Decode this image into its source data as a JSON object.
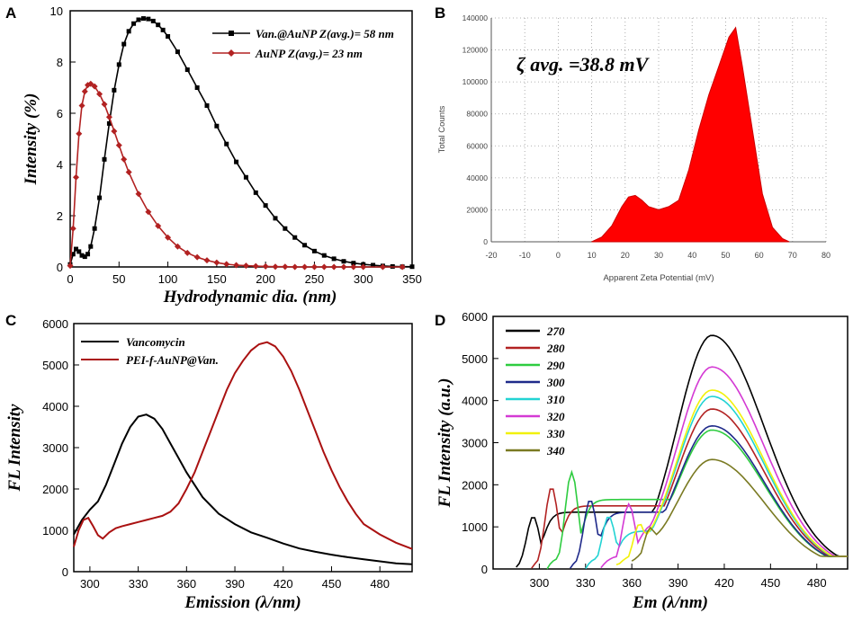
{
  "panel_labels": [
    "A",
    "B",
    "C",
    "D"
  ],
  "chart_data": [
    {
      "type": "line",
      "panel": "A",
      "xlabel": "Hydrodynamic dia. (nm)",
      "ylabel": "Intensity (%)",
      "xlim": [
        0,
        350
      ],
      "ylim": [
        0,
        10
      ],
      "xticks": [
        "0",
        "50",
        "100",
        "150",
        "200",
        "250",
        "300",
        "350"
      ],
      "yticks": [
        "0",
        "2",
        "4",
        "6",
        "8",
        "10"
      ],
      "legend": [
        "Van.@AuNP Z(avg.)= 58 nm",
        "AuNP Z(avg.)= 23 nm"
      ],
      "legend_position": "top-right",
      "series": [
        {
          "name": "Van.@AuNP Z(avg.)= 58 nm",
          "color": "#000000",
          "marker": "square",
          "x": [
            0,
            3,
            6,
            9,
            12,
            15,
            18,
            21,
            25,
            30,
            35,
            40,
            45,
            50,
            55,
            60,
            65,
            70,
            75,
            80,
            85,
            90,
            95,
            100,
            110,
            120,
            130,
            140,
            150,
            160,
            170,
            180,
            190,
            200,
            210,
            220,
            230,
            240,
            250,
            260,
            270,
            280,
            290,
            300,
            310,
            320,
            330,
            340,
            350
          ],
          "y": [
            0.1,
            0.5,
            0.7,
            0.6,
            0.45,
            0.4,
            0.5,
            0.8,
            1.5,
            2.7,
            4.2,
            5.6,
            6.9,
            7.9,
            8.7,
            9.2,
            9.5,
            9.65,
            9.7,
            9.68,
            9.6,
            9.45,
            9.25,
            9.0,
            8.4,
            7.7,
            7.0,
            6.3,
            5.5,
            4.8,
            4.1,
            3.5,
            2.9,
            2.4,
            1.9,
            1.5,
            1.15,
            0.85,
            0.62,
            0.45,
            0.32,
            0.22,
            0.15,
            0.1,
            0.07,
            0.04,
            0.02,
            0.01,
            0.01
          ]
        },
        {
          "name": "AuNP Z(avg.)= 23 nm",
          "color": "#b22222",
          "marker": "diamond",
          "x": [
            0,
            3,
            6,
            9,
            12,
            15,
            18,
            21,
            25,
            30,
            35,
            40,
            45,
            50,
            55,
            60,
            70,
            80,
            90,
            100,
            110,
            120,
            130,
            140,
            150,
            160,
            170,
            180,
            190,
            200,
            210,
            220,
            230,
            240,
            250,
            260,
            270,
            280,
            290,
            300,
            320,
            340
          ],
          "y": [
            0.05,
            1.5,
            3.5,
            5.2,
            6.3,
            6.85,
            7.1,
            7.15,
            7.05,
            6.75,
            6.35,
            5.85,
            5.3,
            4.75,
            4.2,
            3.7,
            2.85,
            2.15,
            1.6,
            1.15,
            0.8,
            0.55,
            0.38,
            0.26,
            0.17,
            0.11,
            0.07,
            0.05,
            0.03,
            0.02,
            0.01,
            0.01,
            0.0,
            0.0,
            0.0,
            0.0,
            0.0,
            0.0,
            0.0,
            0.0,
            0.0,
            0.0
          ]
        }
      ]
    },
    {
      "type": "area",
      "panel": "B",
      "title": "ζ avg. =38.8 mV",
      "xlabel": "Apparent Zeta Potential (mV)",
      "ylabel": "Total Counts",
      "xlim": [
        -20,
        80
      ],
      "ylim": [
        0,
        140000
      ],
      "xticks": [
        "-20",
        "-10",
        "0",
        "10",
        "20",
        "30",
        "40",
        "50",
        "60",
        "70",
        "80"
      ],
      "yticks": [
        "0",
        "20000",
        "40000",
        "60000",
        "80000",
        "100000",
        "120000",
        "140000"
      ],
      "grid": true,
      "color": "#ff0000",
      "x": [
        10,
        13,
        16,
        19,
        21,
        23,
        25,
        27,
        30,
        33,
        36,
        39,
        42,
        45,
        48,
        51,
        53,
        55,
        58,
        61,
        64,
        67,
        69
      ],
      "y": [
        0,
        3000,
        10000,
        22000,
        28000,
        29000,
        26000,
        22000,
        20000,
        22000,
        26000,
        45000,
        70000,
        92000,
        110000,
        128000,
        134000,
        110000,
        70000,
        30000,
        9000,
        2000,
        0
      ]
    },
    {
      "type": "line",
      "panel": "C",
      "xlabel": "Emission (λ/nm)",
      "ylabel": "FL Intensity",
      "xlim": [
        290,
        500
      ],
      "ylim": [
        0,
        6000
      ],
      "xticks": [
        "300",
        "330",
        "360",
        "390",
        "420",
        "450",
        "480"
      ],
      "yticks": [
        "0",
        "1000",
        "2000",
        "3000",
        "4000",
        "5000",
        "6000"
      ],
      "legend": [
        "Vancomycin",
        "PEI-f-AuNP@Van."
      ],
      "legend_position": "top-left",
      "series": [
        {
          "name": "Vancomycin",
          "color": "#000000",
          "x": [
            290,
            295,
            300,
            305,
            310,
            315,
            320,
            325,
            330,
            335,
            340,
            345,
            350,
            355,
            360,
            370,
            380,
            390,
            400,
            410,
            420,
            430,
            440,
            450,
            460,
            470,
            480,
            490,
            500
          ],
          "y": [
            900,
            1250,
            1500,
            1700,
            2100,
            2600,
            3100,
            3500,
            3750,
            3800,
            3700,
            3450,
            3100,
            2750,
            2400,
            1800,
            1400,
            1150,
            950,
            820,
            680,
            560,
            480,
            410,
            350,
            300,
            250,
            200,
            180
          ]
        },
        {
          "name": "PEI-f-AuNP@Van.",
          "color": "#aa1111",
          "x": [
            290,
            293,
            296,
            299,
            302,
            305,
            308,
            312,
            316,
            320,
            325,
            330,
            335,
            340,
            345,
            350,
            355,
            360,
            365,
            370,
            375,
            380,
            385,
            390,
            395,
            400,
            405,
            410,
            415,
            420,
            425,
            430,
            435,
            440,
            445,
            450,
            455,
            460,
            465,
            470,
            480,
            490,
            500
          ],
          "y": [
            600,
            1000,
            1250,
            1300,
            1100,
            880,
            800,
            950,
            1050,
            1100,
            1150,
            1200,
            1250,
            1300,
            1350,
            1450,
            1650,
            2000,
            2400,
            2900,
            3400,
            3900,
            4400,
            4800,
            5100,
            5350,
            5500,
            5550,
            5450,
            5200,
            4850,
            4400,
            3900,
            3400,
            2900,
            2450,
            2050,
            1700,
            1400,
            1150,
            900,
            700,
            550
          ]
        }
      ]
    },
    {
      "type": "line",
      "panel": "D",
      "xlabel": "Em (λ/nm)",
      "ylabel": "FL Intensity (a.u.)",
      "xlim": [
        270,
        500
      ],
      "ylim": [
        0,
        6000
      ],
      "xticks": [
        "300",
        "330",
        "360",
        "390",
        "420",
        "450",
        "480"
      ],
      "yticks": [
        "0",
        "1000",
        "2000",
        "3000",
        "4000",
        "5000",
        "6000"
      ],
      "legend": [
        "270",
        "280",
        "290",
        "300",
        "310",
        "320",
        "330",
        "340"
      ],
      "legend_position": "top-left",
      "series": [
        {
          "name": "270",
          "color": "#000000",
          "start": 285,
          "exc": 270,
          "peak": 5550,
          "bump": 1250,
          "bumpx": 296,
          "mid": 1350
        },
        {
          "name": "280",
          "color": "#b22222",
          "start": 295,
          "exc": 280,
          "peak": 3800,
          "bump": 1950,
          "bumpx": 308,
          "mid": 1500
        },
        {
          "name": "290",
          "color": "#2ecc40",
          "start": 305,
          "exc": 290,
          "peak": 3300,
          "bump": 2300,
          "bumpx": 321,
          "mid": 1650
        },
        {
          "name": "300",
          "color": "#1f2a8a",
          "start": 320,
          "exc": 300,
          "peak": 3400,
          "bump": 1650,
          "bumpx": 333,
          "mid": 1350
        },
        {
          "name": "310",
          "color": "#22d3d3",
          "start": 330,
          "exc": 310,
          "peak": 4100,
          "bump": 1250,
          "bumpx": 345,
          "mid": 900
        },
        {
          "name": "320",
          "color": "#d43ad4",
          "start": 340,
          "exc": 320,
          "peak": 4800,
          "bump": 1500,
          "bumpx": 358,
          "mid": 1100
        },
        {
          "name": "330",
          "color": "#f1f10a",
          "start": 350,
          "exc": 330,
          "peak": 4250,
          "bump": 1000,
          "bumpx": 365,
          "mid": 900
        },
        {
          "name": "340",
          "color": "#7a7a22",
          "start": 360,
          "exc": 340,
          "peak": 2600,
          "bump": 900,
          "bumpx": 372,
          "mid": 800
        }
      ]
    }
  ]
}
